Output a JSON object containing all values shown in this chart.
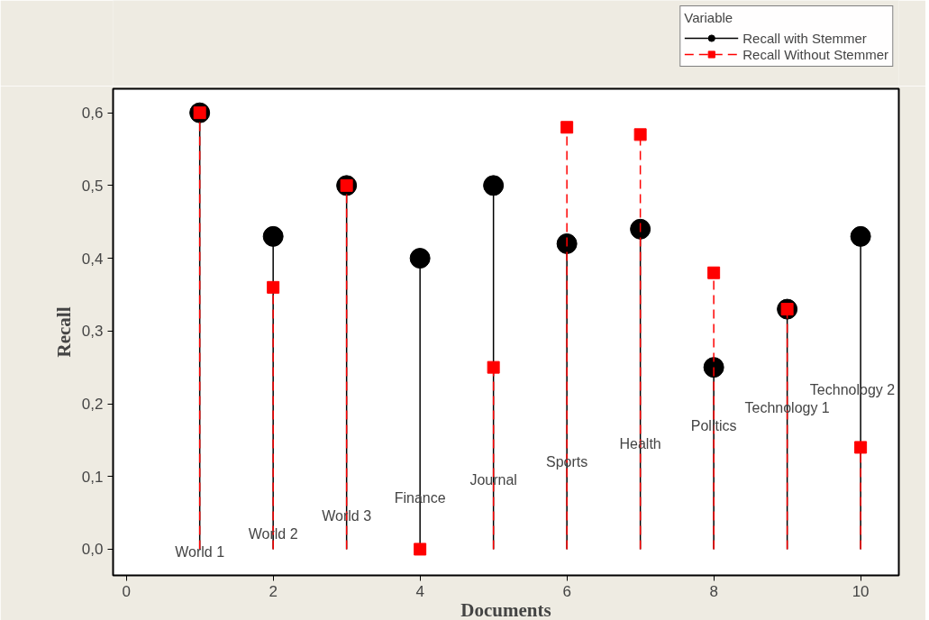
{
  "chart_data": {
    "type": "lollipop",
    "xlabel": "Documents",
    "ylabel": "Recall",
    "legend_title": "Variable",
    "x": [
      1,
      2,
      3,
      4,
      5,
      6,
      7,
      8,
      9,
      10
    ],
    "series": [
      {
        "name": "Recall with Stemmer",
        "color": "#000000",
        "marker": "circle",
        "line_style": "solid",
        "values": [
          0.6,
          0.43,
          0.5,
          0.4,
          0.5,
          0.42,
          0.44,
          0.25,
          0.33,
          0.43
        ]
      },
      {
        "name": "Recall Without Stemmer",
        "color": "#ff0000",
        "marker": "square",
        "line_style": "dashed",
        "values": [
          0.6,
          0.36,
          0.5,
          0.0,
          0.25,
          0.58,
          0.57,
          0.38,
          0.33,
          0.14
        ]
      }
    ],
    "annotations": [
      "World 1",
      "World 2",
      "World 3",
      "Finance",
      "Journal",
      "Sports",
      "Health",
      "Politics",
      "Technology 1",
      "Technology 2"
    ],
    "xlim": [
      -0.18,
      10.52
    ],
    "ylim": [
      -0.036,
      0.633
    ],
    "xticks": [
      0,
      2,
      4,
      6,
      8,
      10
    ],
    "yticks": [
      {
        "value": 0.0,
        "label": "0,0"
      },
      {
        "value": 0.1,
        "label": "0,1"
      },
      {
        "value": 0.2,
        "label": "0,2"
      },
      {
        "value": 0.3,
        "label": "0,3"
      },
      {
        "value": 0.4,
        "label": "0,4"
      },
      {
        "value": 0.5,
        "label": "0,5"
      },
      {
        "value": 0.6,
        "label": "0,6"
      }
    ],
    "grid": false,
    "legend": "top right"
  }
}
